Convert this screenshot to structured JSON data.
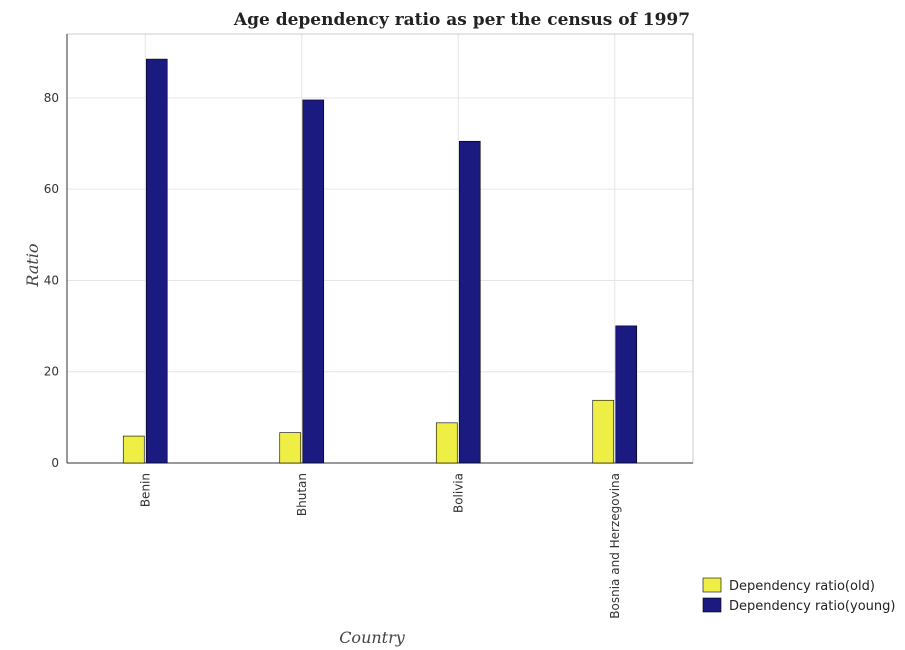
{
  "chart_data": {
    "type": "bar",
    "title": "Age dependency ratio as per the census of 1997",
    "xlabel": "Country",
    "ylabel": "Ratio",
    "categories": [
      "Benin",
      "Bhutan",
      "Bolivia",
      "Bosnia and Herzegovina"
    ],
    "series": [
      {
        "name": "Dependency ratio(old)",
        "color": "#eeee44",
        "values": [
          5.9,
          6.65,
          8.8,
          13.75
        ]
      },
      {
        "name": "Dependency ratio(young)",
        "color": "#1a1a80",
        "values": [
          88.5,
          79.55,
          70.5,
          30.05
        ]
      }
    ],
    "ylim": [
      0,
      94
    ],
    "yticks": [
      0,
      20,
      40,
      60,
      80
    ],
    "grid": true,
    "legend_position": "bottom-right"
  }
}
